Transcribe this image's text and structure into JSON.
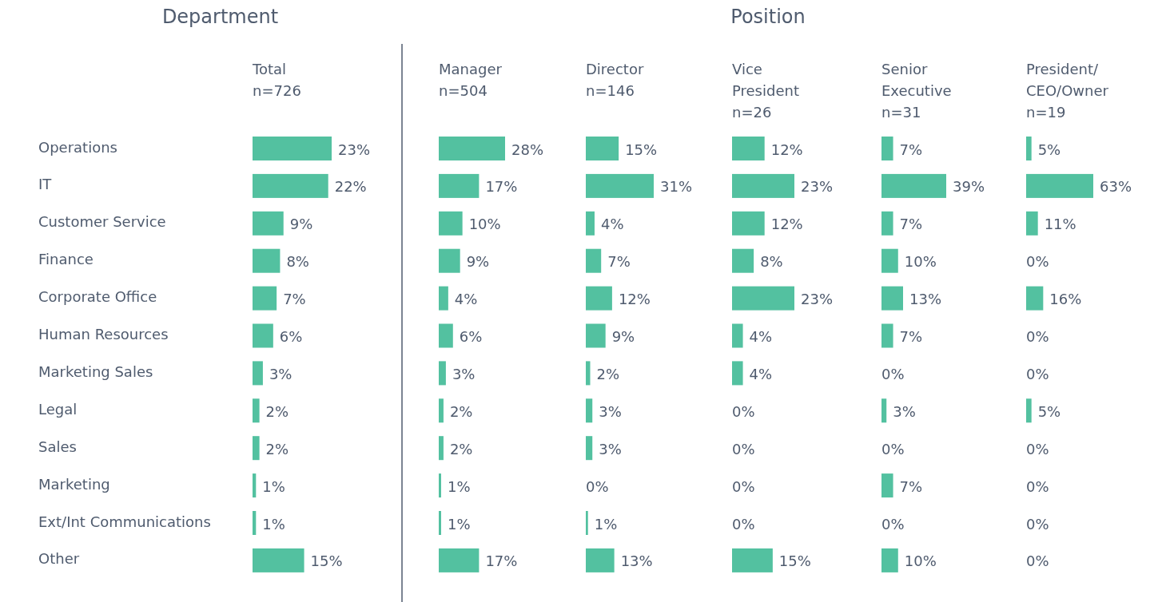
{
  "chart_data": [
    {
      "type": "bar",
      "orientation": "horizontal",
      "annotations": [
        "Department"
      ],
      "title": "Total",
      "subtitle": "n=726",
      "tick_labels": "y",
      "color": "#53c1a0",
      "categories": [
        "Operations",
        "IT",
        "Customer Service",
        "Finance",
        "Corporate Office",
        "Human Resources",
        "Marketing Sales",
        "Legal",
        "Sales",
        "Marketing",
        "Ext/Int Communications",
        "Other"
      ],
      "values": [
        23,
        22,
        9,
        8,
        7,
        6,
        3,
        2,
        2,
        1,
        1,
        15
      ],
      "value_labels": [
        "23%",
        "22%",
        "9%",
        "8%",
        "7%",
        "6%",
        "3%",
        "2%",
        "2%",
        "1%",
        "1%",
        "15%"
      ]
    },
    {
      "type": "bar",
      "orientation": "horizontal",
      "annotations": [
        "Position"
      ],
      "title": "Manager",
      "subtitle": "n=504",
      "color": "#53c1a0",
      "categories": [
        null,
        null,
        null,
        null,
        null,
        null,
        null,
        null,
        null,
        null,
        null,
        null
      ],
      "values": [
        28,
        17,
        10,
        9,
        4,
        6,
        3,
        2,
        2,
        1,
        1,
        17
      ],
      "value_labels": [
        "28%",
        "17%",
        "10%",
        "9%",
        "4%",
        "6%",
        "3%",
        "2%",
        "2%",
        "1%",
        "1%",
        "17%"
      ]
    },
    {
      "type": "bar",
      "orientation": "horizontal",
      "title": "Director",
      "subtitle": "n=146",
      "color": "#53c1a0",
      "categories": [
        null,
        null,
        null,
        null,
        null,
        null,
        null,
        null,
        null,
        null,
        null,
        null
      ],
      "values": [
        15,
        31,
        4,
        7,
        12,
        9,
        2,
        3,
        3,
        0,
        1,
        13
      ],
      "value_labels": [
        "15%",
        "31%",
        "4%",
        "7%",
        "12%",
        "9%",
        "2%",
        "3%",
        "3%",
        "0%",
        "1%",
        "13%"
      ]
    },
    {
      "type": "bar",
      "orientation": "horizontal",
      "title": "Vice\nPresident",
      "subtitle": "n=26",
      "color": "#53c1a0",
      "categories": [
        null,
        null,
        null,
        null,
        null,
        null,
        null,
        null,
        null,
        null,
        null,
        null
      ],
      "values": [
        12,
        23,
        12,
        8,
        23,
        4,
        4,
        0,
        0,
        0,
        0,
        15
      ],
      "value_labels": [
        "12%",
        "23%",
        "12%",
        "8%",
        "23%",
        "4%",
        "4%",
        "0%",
        "0%",
        "0%",
        "0%",
        "15%"
      ]
    },
    {
      "type": "bar",
      "orientation": "horizontal",
      "title": "Senior\nExecutive",
      "subtitle": "n=31",
      "color": "#53c1a0",
      "categories": [
        null,
        null,
        null,
        null,
        null,
        null,
        null,
        null,
        null,
        null,
        null,
        null
      ],
      "values": [
        7,
        39,
        7,
        10,
        13,
        7,
        0,
        3,
        0,
        7,
        0,
        10
      ],
      "value_labels": [
        "7%",
        "39%",
        "7%",
        "10%",
        "13%",
        "7%",
        "0%",
        "3%",
        "0%",
        "7%",
        "0%",
        "10%"
      ]
    },
    {
      "type": "bar",
      "orientation": "horizontal",
      "title": "President/\nCEO/Owner",
      "subtitle": "n=19",
      "color": "#53c1a0",
      "categories": [
        null,
        null,
        null,
        null,
        null,
        null,
        null,
        null,
        null,
        null,
        null,
        null
      ],
      "values": [
        5,
        63,
        11,
        0,
        16,
        0,
        0,
        5,
        0,
        0,
        0,
        0
      ],
      "value_labels": [
        "5%",
        "63%",
        "11%",
        "0%",
        "16%",
        "0%",
        "0%",
        "5%",
        "0%",
        "0%",
        "0%",
        "0%"
      ]
    }
  ]
}
